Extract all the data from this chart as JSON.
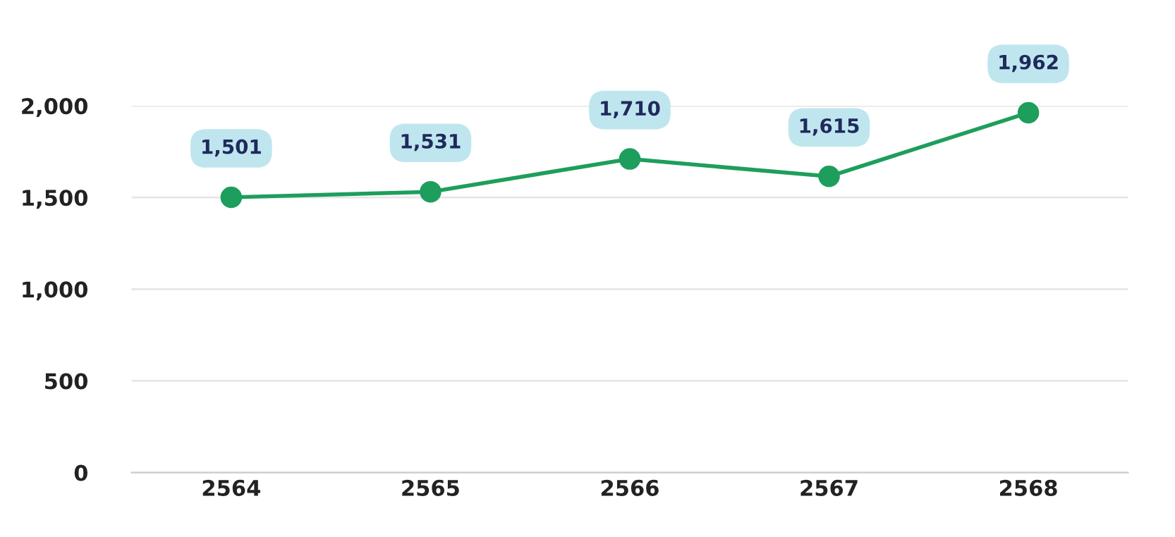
{
  "chart_data": {
    "type": "line",
    "categories": [
      "2564",
      "2565",
      "2566",
      "2567",
      "2568"
    ],
    "series": [
      {
        "color": "#1e9e5c",
        "values": [
          1501,
          1531,
          1710,
          1615,
          1962
        ]
      }
    ],
    "value_labels": [
      "1,501",
      "1,531",
      "1,710",
      "1,615",
      "1,962"
    ],
    "ylim": [
      0,
      2000
    ],
    "yticks": [
      {
        "value": 0,
        "label": "0"
      },
      {
        "value": 500,
        "label": "500"
      },
      {
        "value": 1000,
        "label": "1,000"
      },
      {
        "value": 1500,
        "label": "1,500"
      },
      {
        "value": 2000,
        "label": "2,000"
      }
    ],
    "grid": "y",
    "marker": "circle",
    "line_style": "solid",
    "legend": false
  }
}
